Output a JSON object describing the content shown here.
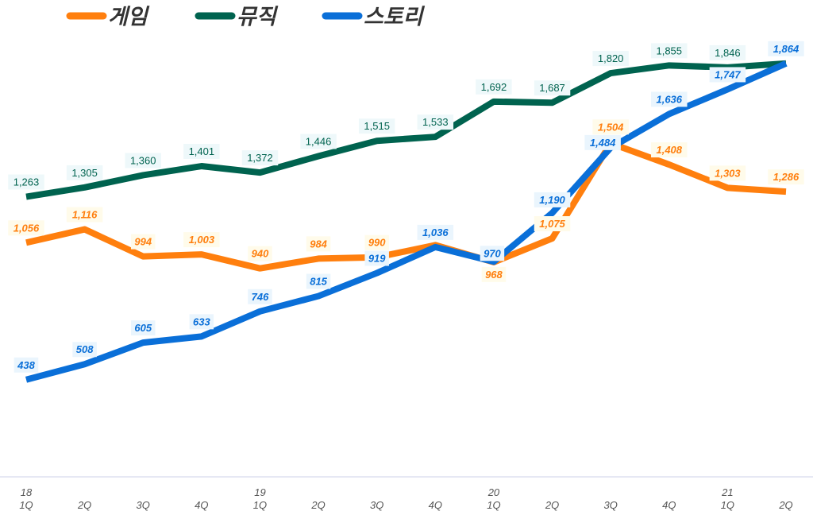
{
  "chart_data": {
    "type": "line",
    "title": "",
    "xlabel": "",
    "ylabel": "",
    "x": [
      "18 1Q",
      "2Q",
      "3Q",
      "4Q",
      "19 1Q",
      "2Q",
      "3Q",
      "4Q",
      "20 1Q",
      "2Q",
      "3Q",
      "4Q",
      "21 1Q",
      "2Q"
    ],
    "x_tick_years": [
      "18",
      "",
      "",
      "",
      "19",
      "",
      "",
      "",
      "20",
      "",
      "",
      "",
      "21",
      ""
    ],
    "x_tick_quarters": [
      "1Q",
      "2Q",
      "3Q",
      "4Q",
      "1Q",
      "2Q",
      "3Q",
      "4Q",
      "1Q",
      "2Q",
      "3Q",
      "4Q",
      "1Q",
      "2Q"
    ],
    "ylim": [
      0,
      2150
    ],
    "grid": false,
    "legend_placement": "top-left",
    "series": [
      {
        "name": "게임",
        "color": "#FF7F0E",
        "values": [
          1056,
          1116,
          994,
          1003,
          940,
          984,
          990,
          1045,
          968,
          1075,
          1504,
          1408,
          1303,
          1286
        ],
        "labels": [
          "1,056",
          "1,116",
          "994",
          "1,003",
          "940",
          "984",
          "990",
          "",
          "968",
          "1,075",
          "1,504",
          "1,408",
          "1,303",
          "1,286"
        ]
      },
      {
        "name": "뮤직",
        "color": "#00634F",
        "values": [
          1263,
          1305,
          1360,
          1401,
          1372,
          1446,
          1515,
          1533,
          1692,
          1687,
          1820,
          1855,
          1846,
          1864
        ],
        "labels": [
          "1,263",
          "1,305",
          "1,360",
          "1,401",
          "1,372",
          "1,446",
          "1,515",
          "1,533",
          "1,692",
          "1,687",
          "1,820",
          "1,855",
          "1,846",
          ""
        ]
      },
      {
        "name": "스토리",
        "color": "#0A6FD8",
        "values": [
          438,
          508,
          605,
          633,
          746,
          815,
          919,
          1036,
          970,
          1190,
          1484,
          1636,
          1747,
          1864
        ],
        "labels": [
          "438",
          "508",
          "605",
          "633",
          "746",
          "815",
          "919",
          "1,036",
          "970",
          "1,190",
          "1,484",
          "1,636",
          "1,747",
          "1,864"
        ]
      }
    ]
  }
}
